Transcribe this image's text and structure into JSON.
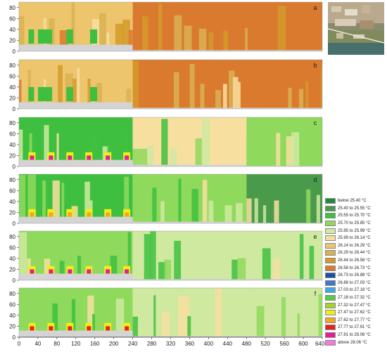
{
  "chart_data": {
    "type": "heatmap",
    "xlabel": "",
    "ylabel": "",
    "x_unit": "m",
    "xlim": [
      0,
      640
    ],
    "ylim": [
      0,
      90
    ],
    "x_ticks": [
      "0",
      "40",
      "80",
      "120",
      "160",
      "200",
      "240",
      "280",
      "320",
      "360",
      "400",
      "440",
      "480",
      "520",
      "560",
      "600",
      "640m"
    ],
    "x_tick_values": [
      0,
      40,
      80,
      120,
      160,
      200,
      240,
      280,
      320,
      360,
      400,
      440,
      480,
      520,
      560,
      600,
      640
    ],
    "y_ticks": [
      "0",
      "20",
      "40",
      "60",
      "80"
    ],
    "y_tick_values": [
      0,
      20,
      40,
      60,
      80
    ],
    "legend_placement": "right",
    "legend": [
      {
        "label": "below 25.40 °C",
        "color": "#1f8a3a"
      },
      {
        "label": "25.40 to 25.55 °C",
        "color": "#4a9a4c"
      },
      {
        "label": "25.55 to 25.70 °C",
        "color": "#3fbf3f"
      },
      {
        "label": "25.70 to 25.85 °C",
        "color": "#8fd95c"
      },
      {
        "label": "25.85 to 25.99 °C",
        "color": "#cfe9a0"
      },
      {
        "label": "25.99 to 26.14 °C",
        "color": "#f7dfa0"
      },
      {
        "label": "26.14 to 26.29 °C",
        "color": "#ecc56d"
      },
      {
        "label": "26.29 to 26.44 °C",
        "color": "#d9b152"
      },
      {
        "label": "26.44 to 26.58 °C",
        "color": "#d39a2a"
      },
      {
        "label": "26.58 to 26.73 °C",
        "color": "#d97a2f"
      },
      {
        "label": "26.73 to 26.88 °C",
        "color": "#1f4fa8"
      },
      {
        "label": "26.88 to 27.03 °C",
        "color": "#3b78d0"
      },
      {
        "label": "27.03 to 27.18 °C",
        "color": "#41a8e8"
      },
      {
        "label": "27.18 to 27.32 °C",
        "color": "#58c846"
      },
      {
        "label": "27.32 to 27.47 °C",
        "color": "#a6d22a"
      },
      {
        "label": "27.47 to 27.62 °C",
        "color": "#f2ee1a"
      },
      {
        "label": "27.62 to 27.77 °C",
        "color": "#f3a623"
      },
      {
        "label": "27.77 to 27.91 °C",
        "color": "#e82020"
      },
      {
        "label": "27.91 to 28.06 °C",
        "color": "#e61c9a"
      },
      {
        "label": "above 28.06 °C",
        "color": "#f57ae0"
      }
    ],
    "panels": [
      {
        "label": "a",
        "regime": "warm",
        "bands": [
          {
            "x": [
              0,
              240
            ],
            "ground_top": 12,
            "air_level": "26.14 to 26.29 °C",
            "canopy_level": "25.55 to 25.70 °C"
          },
          {
            "x": [
              240,
              640
            ],
            "ground_top": 2,
            "air_level": "26.58 to 26.73 °C"
          }
        ]
      },
      {
        "label": "b",
        "regime": "warm",
        "bands": [
          {
            "x": [
              0,
              240
            ],
            "ground_top": 12,
            "air_level": "26.14 to 26.29 °C",
            "canopy_level": "25.55 to 25.70 °C"
          },
          {
            "x": [
              240,
              640
            ],
            "ground_top": 2,
            "air_level": "26.58 to 26.73 °C"
          }
        ]
      },
      {
        "label": "c",
        "regime": "cool",
        "bands": [
          {
            "x": [
              0,
              240
            ],
            "ground_top": 12,
            "air_level": "25.55 to 25.70 °C",
            "surface_level": "27.91 to 28.06 °C"
          },
          {
            "x": [
              240,
              480
            ],
            "ground_top": 3,
            "air_level": "25.99 to 26.14 °C"
          },
          {
            "x": [
              480,
              640
            ],
            "ground_top": 1,
            "air_level": "25.70 to 25.85 °C"
          }
        ]
      },
      {
        "label": "d",
        "regime": "cool",
        "bands": [
          {
            "x": [
              0,
              240
            ],
            "ground_top": 12,
            "air_level": "25.55 to 25.70 °C",
            "surface_level": "27.62 to 27.77 °C"
          },
          {
            "x": [
              240,
              480
            ],
            "ground_top": 3,
            "air_level": "25.70 to 25.85 °C"
          },
          {
            "x": [
              480,
              640
            ],
            "ground_top": 1,
            "air_level": "25.40 to 25.55 °C"
          }
        ]
      },
      {
        "label": "e",
        "regime": "cool",
        "bands": [
          {
            "x": [
              0,
              240
            ],
            "ground_top": 12,
            "air_level": "25.70 to 25.85 °C",
            "surface_level": "27.91 to 28.06 °C"
          },
          {
            "x": [
              240,
              640
            ],
            "ground_top": 2,
            "air_level": "25.85 to 25.99 °C"
          }
        ]
      },
      {
        "label": "f",
        "regime": "cool",
        "bands": [
          {
            "x": [
              0,
              240
            ],
            "ground_top": 12,
            "air_level": "25.70 to 25.85 °C",
            "surface_level": "27.77 to 27.91 °C"
          },
          {
            "x": [
              240,
              640
            ],
            "ground_top": 2,
            "air_level": "25.85 to 25.99 °C"
          }
        ]
      }
    ]
  },
  "inset": {
    "name": "aerial-photo"
  },
  "colors": {
    "ground": "#d4d4d4",
    "axis": "#333333"
  }
}
